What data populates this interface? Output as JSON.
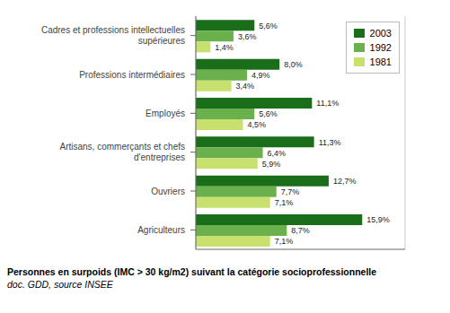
{
  "chart_data": {
    "type": "bar",
    "orientation": "horizontal",
    "title": "Personnes en surpoids (IMC > 30 kg/m2) suivant la catégorie socioprofessionnelle",
    "subtitle": "doc. GDD, source INSEE",
    "categories": [
      "Cadres et professions intellectuelles\nsupérieures",
      "Professions intermédiaires",
      "Employés",
      "Artisans, commerçants et chefs\nd'entreprises",
      "Ouvriers",
      "Agriculteurs"
    ],
    "series": [
      {
        "name": "2003",
        "color": "#1a6e1a",
        "values": [
          5.6,
          8.0,
          11.1,
          11.3,
          12.7,
          15.9
        ],
        "value_labels": [
          "5,6%",
          "8,0%",
          "11,1%",
          "11,3%",
          "12,7%",
          "15,9%"
        ]
      },
      {
        "name": "1992",
        "color": "#6ab04c",
        "values": [
          3.6,
          4.9,
          5.6,
          6.4,
          7.7,
          8.7
        ],
        "value_labels": [
          "3,6%",
          "4,9%",
          "5,6%",
          "6,4%",
          "7,7%",
          "8,7%"
        ]
      },
      {
        "name": "1981",
        "color": "#c8e06e",
        "values": [
          1.4,
          3.4,
          4.5,
          5.9,
          7.1,
          7.1
        ],
        "value_labels": [
          "1,4%",
          "3,4%",
          "4,5%",
          "5,9%",
          "7,1%",
          "7,1%"
        ]
      }
    ],
    "xlim": [
      0,
      20
    ],
    "xticks": [
      0,
      5,
      10,
      15,
      20
    ],
    "grid": true,
    "legend": "upper right",
    "data_labels": true,
    "tick_labels": "y"
  }
}
